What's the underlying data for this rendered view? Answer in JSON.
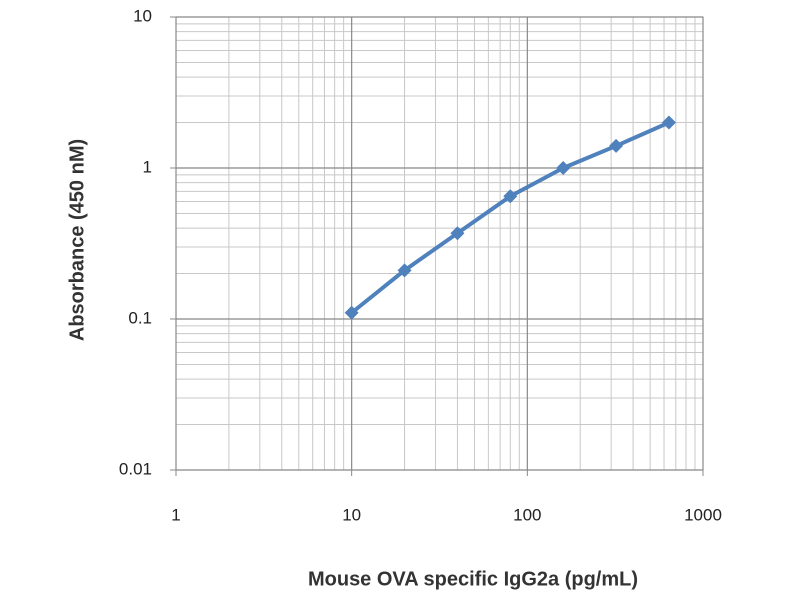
{
  "chart_data": {
    "type": "line",
    "x_label": "Mouse OVA specific IgG2a (pg/mL)",
    "y_label": "Absorbance (450 nM)",
    "x": [
      10,
      20,
      40,
      80,
      160,
      320,
      640
    ],
    "series": [
      {
        "color": "#4f81bd",
        "values": [
          0.11,
          0.21,
          0.37,
          0.65,
          1.0,
          1.4,
          2.0
        ]
      }
    ],
    "xlim": [
      1,
      1000
    ],
    "xticks": [
      1,
      10,
      100,
      1000
    ],
    "ylim": [
      0.01,
      10
    ],
    "yticks": [
      0.01,
      0.1,
      1,
      10
    ],
    "xscale": "log",
    "yscale": "log",
    "grid": true,
    "minor_grid": true
  }
}
